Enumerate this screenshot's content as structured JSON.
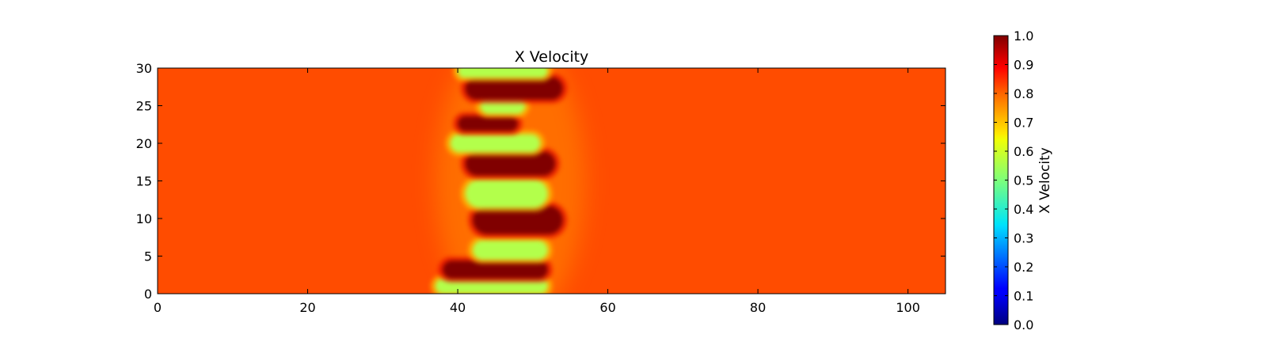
{
  "chart_data": {
    "type": "heatmap",
    "title": "X Velocity",
    "xlabel": "",
    "ylabel": "",
    "xlim": [
      0,
      105
    ],
    "ylim": [
      0,
      30
    ],
    "x_ticks": [
      "0",
      "20",
      "40",
      "60",
      "80",
      "100"
    ],
    "y_ticks": [
      "0",
      "5",
      "10",
      "15",
      "20",
      "25",
      "30"
    ],
    "colorbar": {
      "label": "X Velocity",
      "range": [
        0.0,
        1.0
      ],
      "colormap": "jet",
      "ticks": [
        "0.0",
        "0.1",
        "0.2",
        "0.3",
        "0.4",
        "0.5",
        "0.6",
        "0.7",
        "0.8",
        "0.9",
        "1.0"
      ]
    },
    "background_value": 0.8,
    "features": [
      {
        "kind": "low",
        "x_range": [
          37,
          52
        ],
        "y_center": 1.0,
        "y_half": 1.0,
        "value": 0.55
      },
      {
        "kind": "high",
        "x_range": [
          38,
          52
        ],
        "y_center": 3.2,
        "y_half": 1.2,
        "value": 1.0
      },
      {
        "kind": "low",
        "x_range": [
          42,
          52
        ],
        "y_center": 5.8,
        "y_half": 1.3,
        "value": 0.55
      },
      {
        "kind": "high",
        "x_range": [
          42,
          54
        ],
        "y_center": 9.8,
        "y_half": 1.9,
        "value": 1.0
      },
      {
        "kind": "low",
        "x_range": [
          41,
          52
        ],
        "y_center": 13.3,
        "y_half": 1.9,
        "value": 0.55
      },
      {
        "kind": "high",
        "x_range": [
          41,
          53
        ],
        "y_center": 17.3,
        "y_half": 1.6,
        "value": 1.0
      },
      {
        "kind": "low",
        "x_range": [
          39,
          51
        ],
        "y_center": 20.0,
        "y_half": 1.2,
        "value": 0.55
      },
      {
        "kind": "high",
        "x_range": [
          40,
          48
        ],
        "y_center": 22.6,
        "y_half": 1.0,
        "value": 1.0
      },
      {
        "kind": "low",
        "x_range": [
          43,
          49
        ],
        "y_center": 25.0,
        "y_half": 1.1,
        "value": 0.55
      },
      {
        "kind": "high",
        "x_range": [
          41,
          54
        ],
        "y_center": 27.3,
        "y_half": 1.5,
        "value": 1.0
      },
      {
        "kind": "low",
        "x_range": [
          40,
          52
        ],
        "y_center": 29.6,
        "y_half": 0.9,
        "value": 0.55
      }
    ]
  }
}
